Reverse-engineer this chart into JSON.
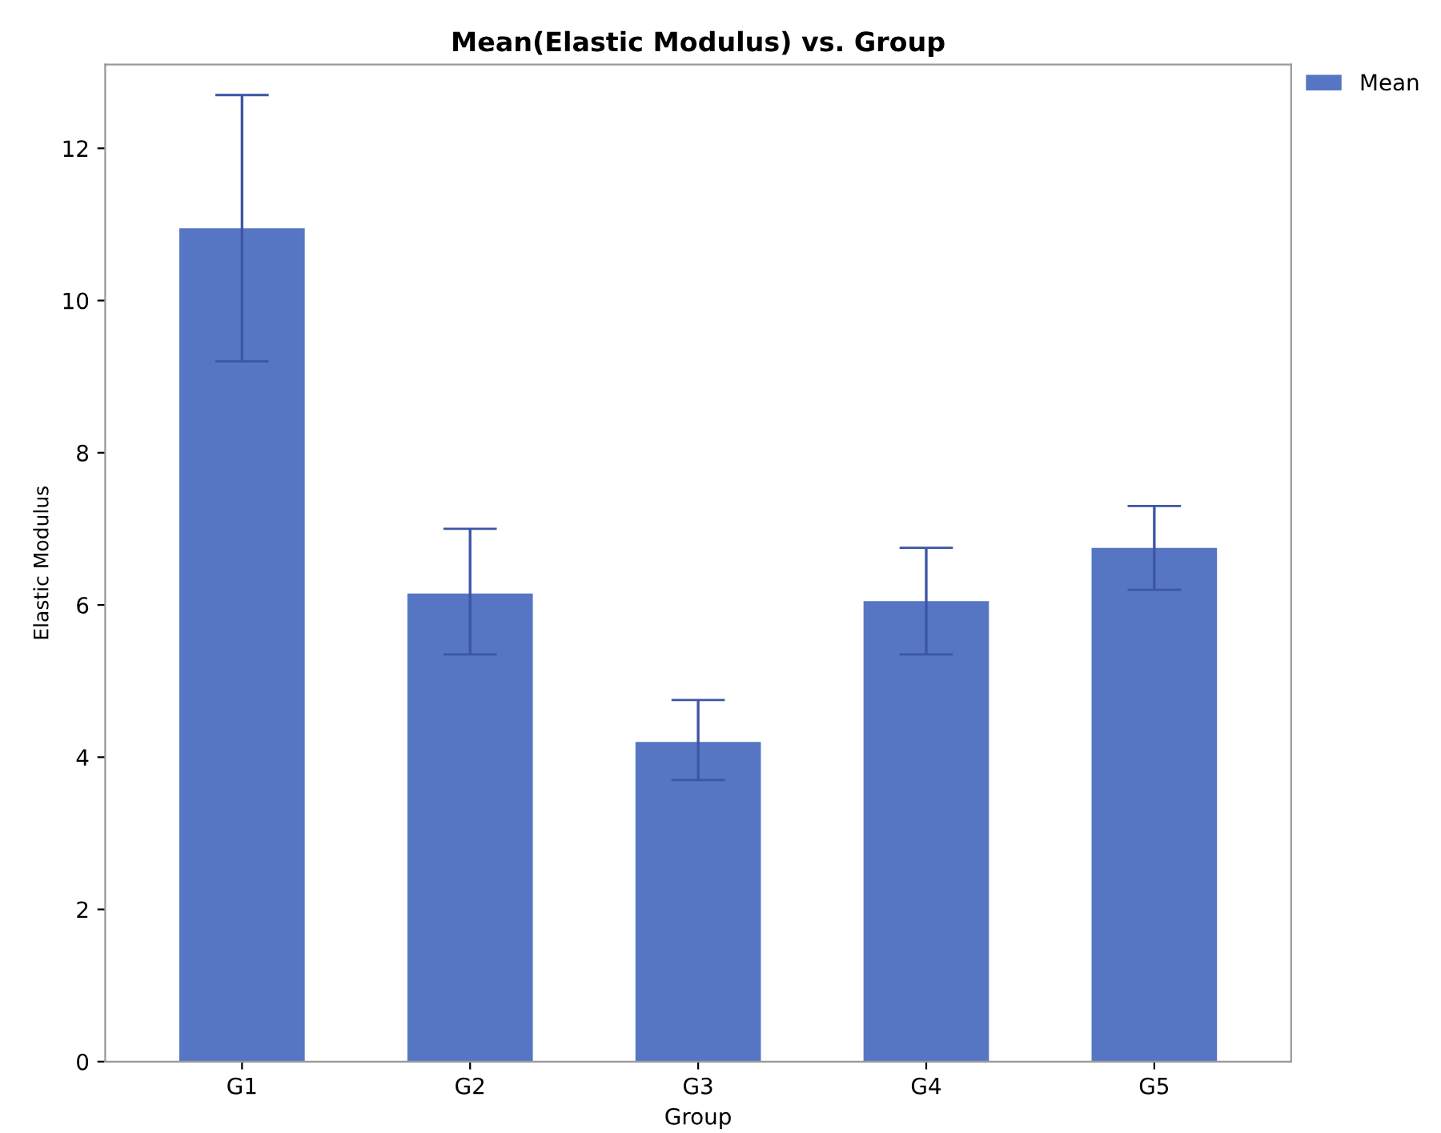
{
  "chart_data": {
    "type": "bar",
    "title": "Mean(Elastic Modulus) vs. Group",
    "xlabel": "Group",
    "ylabel": "Elastic Modulus",
    "categories": [
      "G1",
      "G2",
      "G3",
      "G4",
      "G5"
    ],
    "series": [
      {
        "name": "Mean",
        "color": "#5676c4",
        "values": [
          10.95,
          6.15,
          4.2,
          6.05,
          6.75
        ],
        "errors": [
          [
            9.2,
            12.7
          ],
          [
            5.35,
            7.0
          ],
          [
            3.7,
            4.75
          ],
          [
            5.35,
            6.75
          ],
          [
            6.2,
            7.3
          ]
        ]
      }
    ],
    "ylim": [
      0,
      13.1
    ],
    "yticks": [
      0,
      2,
      4,
      6,
      8,
      10,
      12
    ],
    "grid": false,
    "legend": "top right"
  }
}
